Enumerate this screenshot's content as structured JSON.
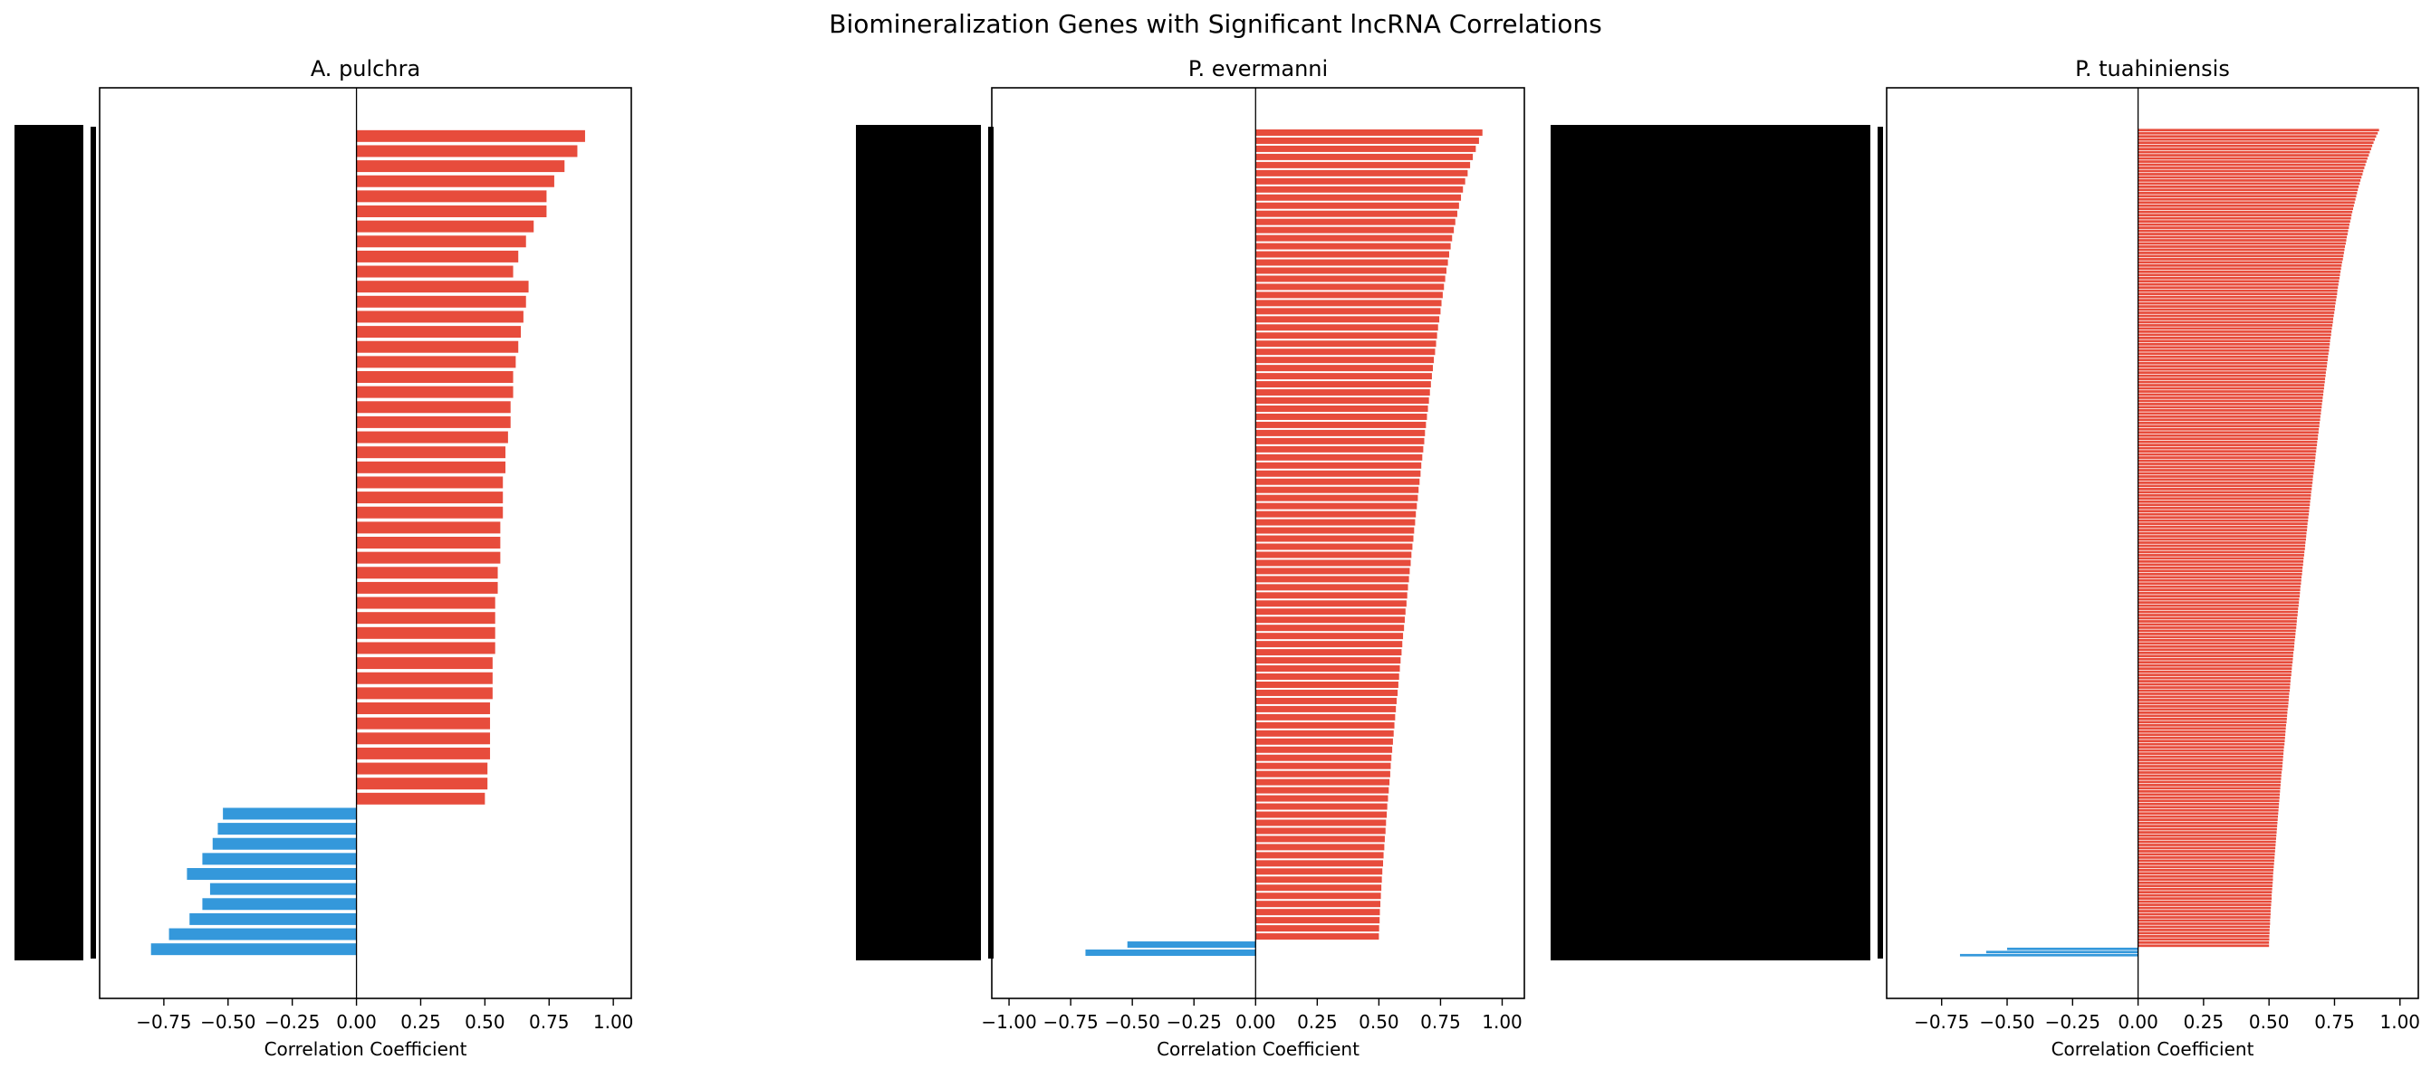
{
  "figure": {
    "title": "Biomineralization Genes with Significant lncRNA Correlations"
  },
  "colors": {
    "positive": "#e74c3c",
    "negative": "#3498db",
    "ytick_labels": "#000000",
    "axis": "#000000"
  },
  "chart_data": [
    {
      "type": "bar",
      "orientation": "horizontal",
      "title": "A. pulchra",
      "xlabel": "Correlation Coefficient",
      "ylabel": "",
      "xlim": [
        -1.0,
        1.07
      ],
      "xticks": [
        -0.75,
        -0.5,
        -0.25,
        0.0,
        0.25,
        0.5,
        0.75,
        1.0
      ],
      "xtick_labels": [
        "−0.75",
        "−0.50",
        "−0.25",
        "0.00",
        "0.25",
        "0.50",
        "0.75",
        "1.00"
      ],
      "grid": false,
      "legend": "none",
      "ytick_labels_visible": "overlapping black blocks (unreadable)",
      "groups": [
        {
          "sign": "positive",
          "values": [
            0.89,
            0.86,
            0.81,
            0.77,
            0.74
          ]
        },
        {
          "sign": "positive",
          "values": [
            0.74,
            0.69,
            0.66,
            0.63,
            0.61
          ]
        },
        {
          "sign": "positive",
          "values": [
            0.67,
            0.66,
            0.65,
            0.64,
            0.63
          ]
        },
        {
          "sign": "positive",
          "values": [
            0.62,
            0.61,
            0.61,
            0.6,
            0.6
          ]
        },
        {
          "sign": "positive",
          "values": [
            0.59,
            0.58,
            0.58,
            0.57,
            0.57
          ]
        },
        {
          "sign": "positive",
          "values": [
            0.57,
            0.56,
            0.56,
            0.56,
            0.55
          ]
        },
        {
          "sign": "positive",
          "values": [
            0.55,
            0.54,
            0.54,
            0.54,
            0.54
          ]
        },
        {
          "sign": "positive",
          "values": [
            0.53,
            0.53,
            0.53,
            0.52,
            0.52
          ]
        },
        {
          "sign": "positive",
          "values": [
            0.52,
            0.52,
            0.51,
            0.51,
            0.5
          ]
        },
        {
          "sign": "negative",
          "values": [
            -0.52,
            -0.54,
            -0.56,
            -0.6,
            -0.66
          ]
        },
        {
          "sign": "negative",
          "values": [
            -0.57,
            -0.6,
            -0.65,
            -0.73,
            -0.8
          ]
        }
      ]
    },
    {
      "type": "bar",
      "orientation": "horizontal",
      "title": "P. evermanni",
      "xlabel": "Correlation Coefficient",
      "ylabel": "",
      "xlim": [
        -1.07,
        1.09
      ],
      "xticks": [
        -1.0,
        -0.75,
        -0.5,
        -0.25,
        0.0,
        0.25,
        0.5,
        0.75,
        1.0
      ],
      "xtick_labels": [
        "−1.00",
        "−0.75",
        "−0.50",
        "−0.25",
        "0.00",
        "0.25",
        "0.50",
        "0.75",
        "1.00"
      ],
      "grid": false,
      "legend": "none",
      "ytick_labels_visible": "overlapping black blocks (unreadable)",
      "positive_sorted_desc": {
        "count": 100,
        "max": 0.92,
        "min": 0.5
      },
      "negative_values": [
        -0.52,
        -0.69
      ]
    },
    {
      "type": "bar",
      "orientation": "horizontal",
      "title": "P. tuahiniensis",
      "xlabel": "Correlation Coefficient",
      "ylabel": "",
      "xlim": [
        -0.96,
        1.07
      ],
      "xticks": [
        -0.75,
        -0.5,
        -0.25,
        0.0,
        0.25,
        0.5,
        0.75,
        1.0
      ],
      "xtick_labels": [
        "−0.75",
        "−0.50",
        "−0.25",
        "0.00",
        "0.25",
        "0.50",
        "0.75",
        "1.00"
      ],
      "grid": false,
      "legend": "none",
      "ytick_labels_visible": "overlapping black blocks (unreadable)",
      "positive_sorted_desc": {
        "count": 260,
        "max": 0.92,
        "min": 0.5
      },
      "negative_values": [
        -0.5,
        -0.58,
        -0.68
      ]
    }
  ]
}
